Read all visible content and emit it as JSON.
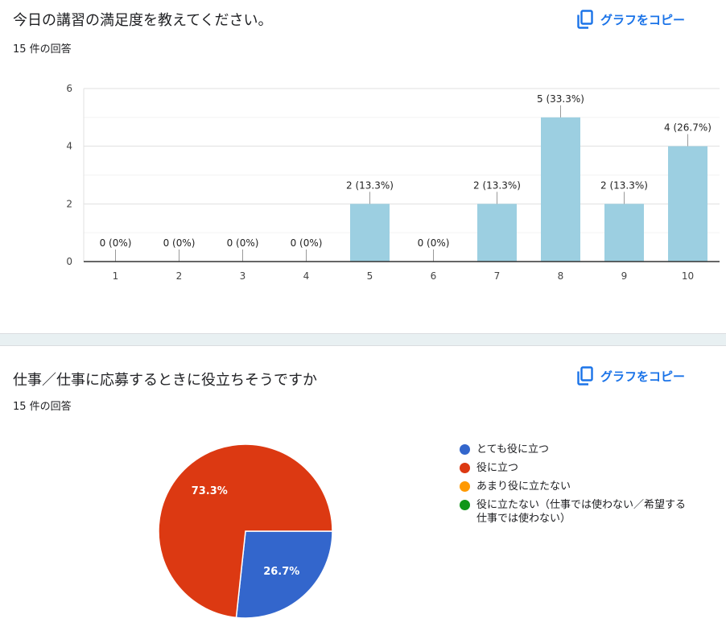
{
  "questions": [
    {
      "title": "今日の講習の満足度を教えてください。",
      "response_count": "15 件の回答",
      "copy_label": "グラフをコピー"
    },
    {
      "title": "仕事／仕事に応募するときに役立ちそうですか",
      "response_count": "15 件の回答",
      "copy_label": "グラフをコピー"
    }
  ],
  "chart_data": [
    {
      "type": "bar",
      "categories": [
        "1",
        "2",
        "3",
        "4",
        "5",
        "6",
        "7",
        "8",
        "9",
        "10"
      ],
      "values": [
        0,
        0,
        0,
        0,
        2,
        0,
        2,
        5,
        2,
        4
      ],
      "data_labels": [
        "0 (0%)",
        "0 (0%)",
        "0 (0%)",
        "0 (0%)",
        "2 (13.3%)",
        "0 (0%)",
        "2 (13.3%)",
        "5 (33.3%)",
        "2 (13.3%)",
        "4 (26.7%)"
      ],
      "y_ticks": [
        "0",
        "2",
        "4",
        "6"
      ],
      "ylim": [
        0,
        6
      ],
      "grid": true,
      "bar_color": "#9ccfe1"
    },
    {
      "type": "pie",
      "legend_position": "right",
      "slices": [
        {
          "label": "とても役に立つ",
          "value": 26.7,
          "display": "26.7%",
          "color": "#3366cc"
        },
        {
          "label": "役に立つ",
          "value": 73.3,
          "display": "73.3%",
          "color": "#dc3912"
        },
        {
          "label": "あまり役に立たない",
          "value": 0,
          "display": "",
          "color": "#ff9900"
        },
        {
          "label": "役に立たない（仕事では使わない／希望する仕事では使わない）",
          "value": 0,
          "display": "",
          "color": "#109618"
        }
      ]
    }
  ],
  "icons": {
    "copy": "copy-icon"
  },
  "colors": {
    "accent": "#1a73e8"
  }
}
